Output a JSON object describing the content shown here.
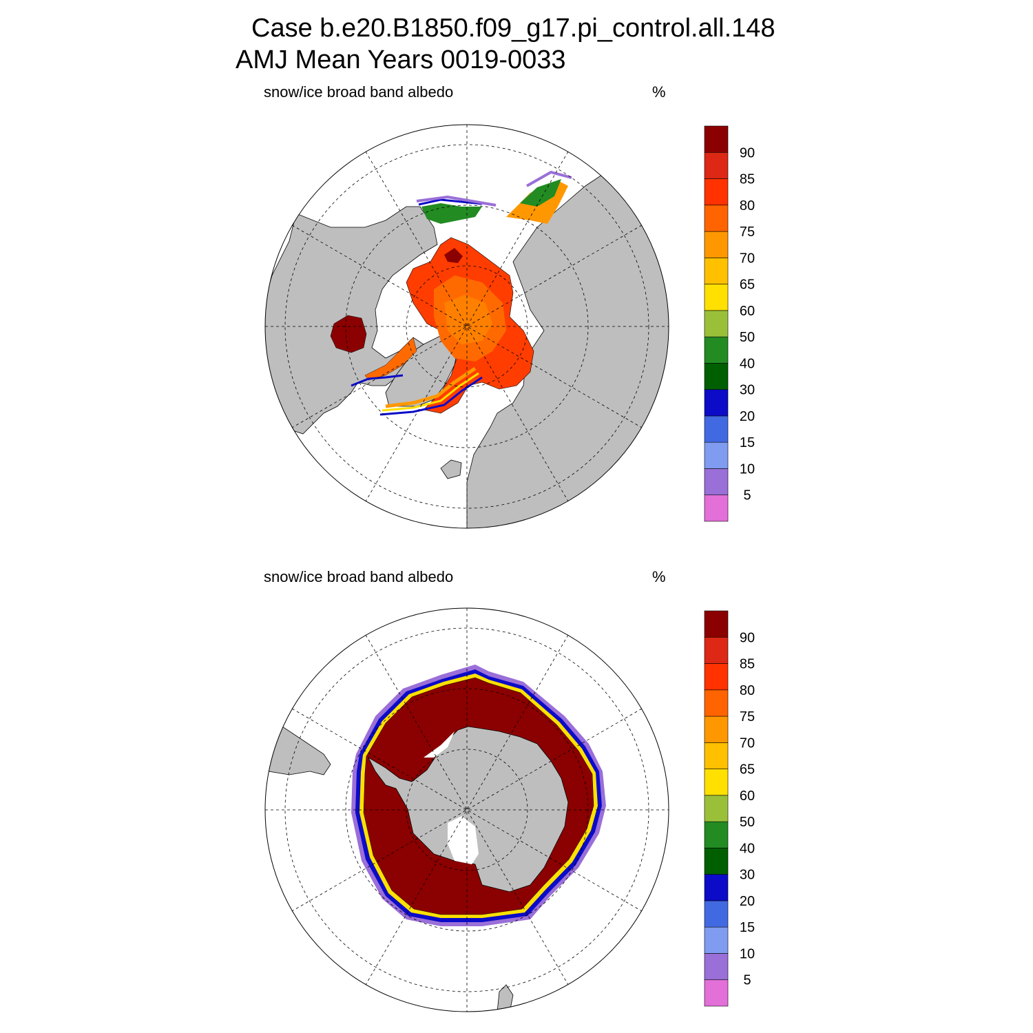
{
  "title": {
    "line1": "Case b.e20.B1850.f09_g17.pi_control.all.148",
    "line2": "AMJ Mean   Years 0019-0033"
  },
  "panels": [
    {
      "hemisphere": "north",
      "variable": "snow/ice broad band albedo",
      "units": "%"
    },
    {
      "hemisphere": "south",
      "variable": "snow/ice broad band albedo",
      "units": "%"
    }
  ],
  "colorbar": {
    "levels": [
      "5",
      "10",
      "15",
      "20",
      "30",
      "40",
      "50",
      "60",
      "65",
      "70",
      "75",
      "80",
      "85",
      "90"
    ],
    "colors": [
      "#e36fd8",
      "#9a6fd8",
      "#7f9cf0",
      "#4169e1",
      "#0b0bc8",
      "#005f00",
      "#228b22",
      "#9ac03a",
      "#ffe000",
      "#ffc000",
      "#ff9800",
      "#ff6400",
      "#ff3200",
      "#dc2814",
      "#8b0000"
    ]
  },
  "colors": {
    "land": "#bebebe",
    "ocean": "#ffffff",
    "arctic_ice_core": "#ff6a00",
    "arctic_ice_mid": "#ff3d00",
    "antarctic_ice": "#8b0000"
  }
}
